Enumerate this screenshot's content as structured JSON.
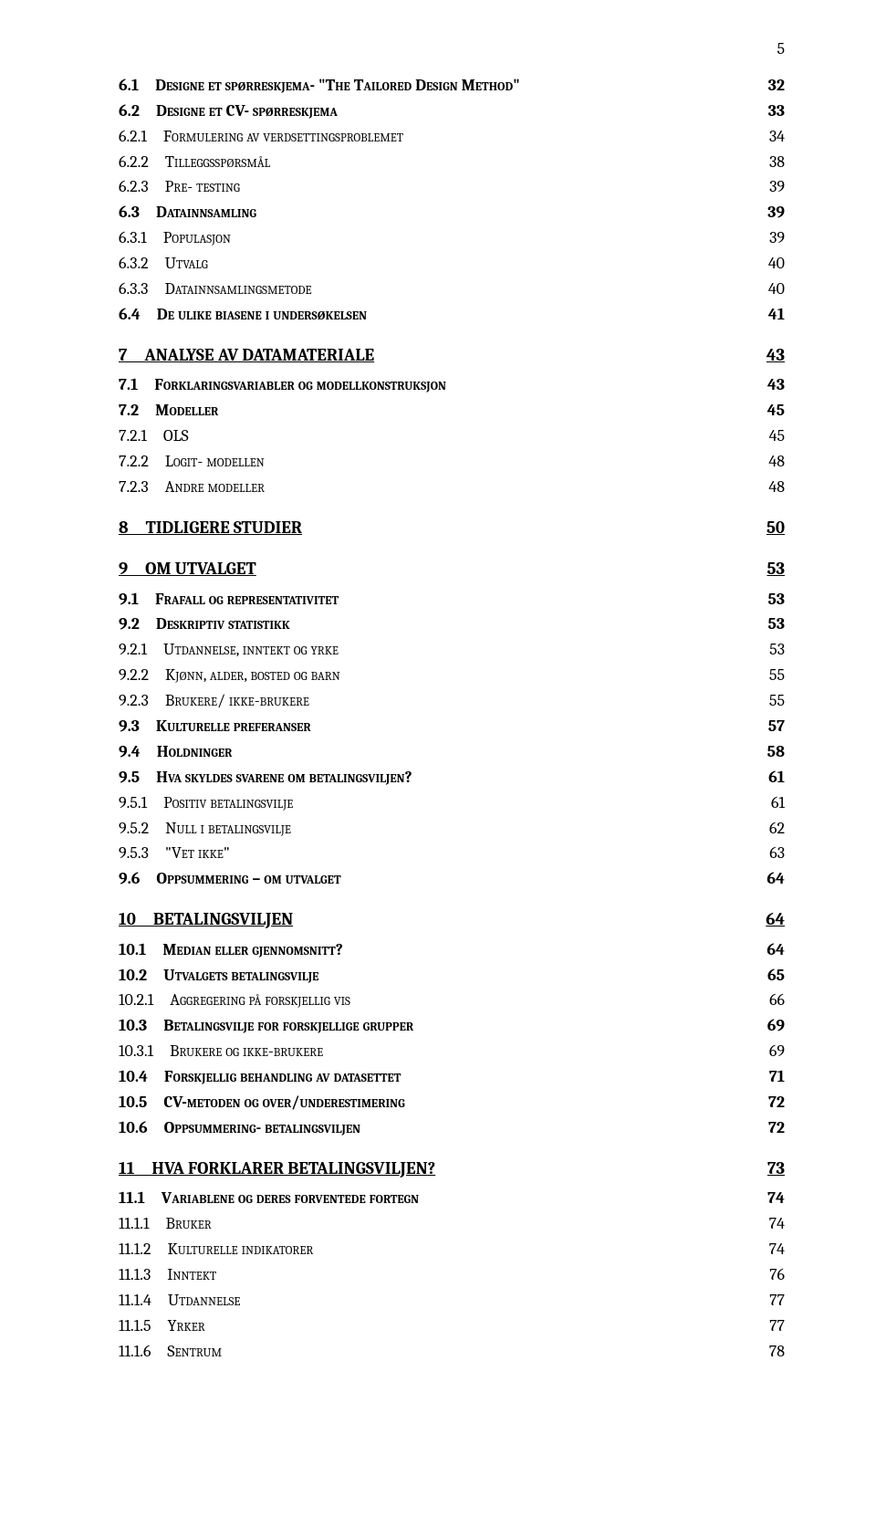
{
  "page_number": "5",
  "font_color": "#000000",
  "background_color": "#ffffff",
  "toc": [
    {
      "level": "h2",
      "num": "6.1",
      "title": "Designe et spørreskjema- \"The Tailored Design Method\"",
      "page": "32"
    },
    {
      "level": "h2",
      "num": "6.2",
      "title": "Designe et CV- spørreskjema",
      "page": "33"
    },
    {
      "level": "h3",
      "num": "6.2.1",
      "title": "Formulering av verdsettingsproblemet",
      "page": "34"
    },
    {
      "level": "h3",
      "num": "6.2.2",
      "title": "Tilleggsspørsmål",
      "page": "38"
    },
    {
      "level": "h3",
      "num": "6.2.3",
      "title": "Pre- testing",
      "page": "39"
    },
    {
      "level": "h2",
      "num": "6.3",
      "title": "Datainnsamling",
      "page": "39"
    },
    {
      "level": "h3",
      "num": "6.3.1",
      "title": "Populasjon",
      "page": "39"
    },
    {
      "level": "h3",
      "num": "6.3.2",
      "title": "Utvalg",
      "page": "40"
    },
    {
      "level": "h3",
      "num": "6.3.3",
      "title": "Datainnsamlingsmetode",
      "page": "40"
    },
    {
      "level": "h2",
      "num": "6.4",
      "title": "De ulike biasene i undersøkelsen",
      "page": "41"
    },
    {
      "level": "h1",
      "num": "7",
      "title": "ANALYSE AV DATAMATERIALE",
      "page": "43"
    },
    {
      "level": "h2",
      "num": "7.1",
      "title": "Forklaringsvariabler og modellkonstruksjon",
      "page": "43"
    },
    {
      "level": "h2",
      "num": "7.2",
      "title": "Modeller",
      "page": "45"
    },
    {
      "level": "h3",
      "num": "7.2.1",
      "title": "OLS",
      "page": "45"
    },
    {
      "level": "h3",
      "num": "7.2.2",
      "title": "Logit- modellen",
      "page": "48"
    },
    {
      "level": "h3",
      "num": "7.2.3",
      "title": "Andre modeller",
      "page": "48"
    },
    {
      "level": "h1",
      "num": "8",
      "title": "TIDLIGERE STUDIER",
      "page": "50"
    },
    {
      "level": "h1",
      "num": "9",
      "title": "OM UTVALGET",
      "page": "53"
    },
    {
      "level": "h2",
      "num": "9.1",
      "title": "Frafall og representativitet",
      "page": "53"
    },
    {
      "level": "h2",
      "num": "9.2",
      "title": "Deskriptiv statistikk",
      "page": "53"
    },
    {
      "level": "h3",
      "num": "9.2.1",
      "title": "Utdannelse, inntekt og yrke",
      "page": "53"
    },
    {
      "level": "h3",
      "num": "9.2.2",
      "title": "Kjønn, alder, bosted og barn",
      "page": "55"
    },
    {
      "level": "h3",
      "num": "9.2.3",
      "title": "Brukere/ ikke-brukere",
      "page": "55"
    },
    {
      "level": "h2",
      "num": "9.3",
      "title": "Kulturelle preferanser",
      "page": "57"
    },
    {
      "level": "h2",
      "num": "9.4",
      "title": "Holdninger",
      "page": "58"
    },
    {
      "level": "h2",
      "num": "9.5",
      "title": "Hva skyldes svarene om betalingsviljen?",
      "page": "61"
    },
    {
      "level": "h3",
      "num": "9.5.1",
      "title": "Positiv betalingsvilje",
      "page": "61"
    },
    {
      "level": "h3",
      "num": "9.5.2",
      "title": "Null i betalingsvilje",
      "page": "62"
    },
    {
      "level": "h3",
      "num": "9.5.3",
      "title": "\"Vet ikke\"",
      "page": "63"
    },
    {
      "level": "h2",
      "num": "9.6",
      "title": "Oppsummering – om utvalget",
      "page": "64"
    },
    {
      "level": "h1",
      "num": "10",
      "title": "BETALINGSVILJEN",
      "page": "64"
    },
    {
      "level": "h2",
      "num": "10.1",
      "title": "Median eller gjennomsnitt?",
      "page": "64"
    },
    {
      "level": "h2",
      "num": "10.2",
      "title": "Utvalgets betalingsvilje",
      "page": "65"
    },
    {
      "level": "h3",
      "num": "10.2.1",
      "title": "Aggregering på forskjellig vis",
      "page": "66"
    },
    {
      "level": "h2",
      "num": "10.3",
      "title": "Betalingsvilje for forskjellige grupper",
      "page": "69"
    },
    {
      "level": "h3",
      "num": "10.3.1",
      "title": "Brukere og ikke-brukere",
      "page": "69"
    },
    {
      "level": "h2",
      "num": "10.4",
      "title": "Forskjellig behandling av datasettet",
      "page": "71"
    },
    {
      "level": "h2",
      "num": "10.5",
      "title": "CV-metoden og over/underestimering",
      "page": "72"
    },
    {
      "level": "h2",
      "num": "10.6",
      "title": "Oppsummering- betalingsviljen",
      "page": "72"
    },
    {
      "level": "h1",
      "num": "11",
      "title": "HVA FORKLARER BETALINGSVILJEN?",
      "page": "73"
    },
    {
      "level": "h2",
      "num": "11.1",
      "title": "Variablene og deres forventede fortegn",
      "page": "74"
    },
    {
      "level": "h3",
      "num": "11.1.1",
      "title": "Bruker",
      "page": "74"
    },
    {
      "level": "h3",
      "num": "11.1.2",
      "title": "Kulturelle indikatorer",
      "page": "74"
    },
    {
      "level": "h3",
      "num": "11.1.3",
      "title": "Inntekt",
      "page": "76"
    },
    {
      "level": "h3",
      "num": "11.1.4",
      "title": "Utdannelse",
      "page": "77"
    },
    {
      "level": "h3",
      "num": "11.1.5",
      "title": "Yrker",
      "page": "77"
    },
    {
      "level": "h3",
      "num": "11.1.6",
      "title": "Sentrum",
      "page": "78"
    }
  ]
}
